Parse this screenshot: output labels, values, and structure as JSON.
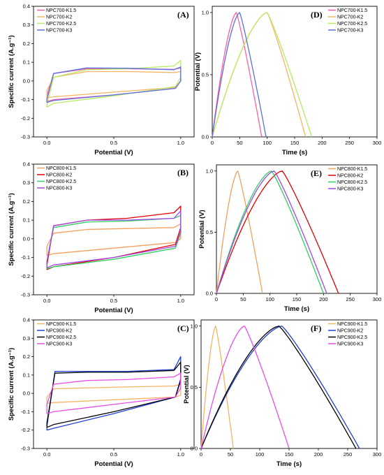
{
  "chart_data": [
    {
      "id": "A",
      "type": "line",
      "panel_label": "(A)",
      "xlabel": "Potential (V)",
      "ylabel": "Specific current (A.g⁻¹)",
      "xlim": [
        -0.1,
        1.1
      ],
      "ylim": [
        -0.3,
        0.4
      ],
      "xticks": [
        "0.0",
        "0.5",
        "1.0"
      ],
      "yticks": [
        "-0.3",
        "-0.2",
        "-0.1",
        "0.0",
        "0.1",
        "0.2",
        "0.3",
        "0.4"
      ],
      "legend_position": "top-left",
      "series": [
        {
          "name": "NPC700-K1.5",
          "color": "#ff5fa2",
          "upper": [
            [
              0.0,
              -0.08
            ],
            [
              0.05,
              0.04
            ],
            [
              0.3,
              0.065
            ],
            [
              0.6,
              0.065
            ],
            [
              0.95,
              0.062
            ],
            [
              1.0,
              0.07
            ]
          ],
          "lower": [
            [
              1.0,
              0.0
            ],
            [
              0.96,
              -0.04
            ],
            [
              0.5,
              -0.075
            ],
            [
              0.05,
              -0.1
            ],
            [
              0.0,
              -0.11
            ]
          ]
        },
        {
          "name": "NPC700-K2",
          "color": "#f5b463",
          "upper": [
            [
              0.0,
              -0.05
            ],
            [
              0.05,
              0.02
            ],
            [
              0.3,
              0.05
            ],
            [
              0.6,
              0.05
            ],
            [
              0.95,
              0.045
            ],
            [
              1.0,
              0.05
            ]
          ],
          "lower": [
            [
              1.0,
              0.0
            ],
            [
              0.96,
              -0.035
            ],
            [
              0.5,
              -0.06
            ],
            [
              0.05,
              -0.085
            ],
            [
              0.0,
              -0.09
            ]
          ]
        },
        {
          "name": "NPC700-K2.5",
          "color": "#b8ea62",
          "upper": [
            [
              0.0,
              -0.13
            ],
            [
              0.05,
              0.02
            ],
            [
              0.3,
              0.06
            ],
            [
              0.6,
              0.065
            ],
            [
              0.95,
              0.08
            ],
            [
              1.0,
              0.11
            ]
          ],
          "lower": [
            [
              1.0,
              0.02
            ],
            [
              0.96,
              -0.03
            ],
            [
              0.5,
              -0.08
            ],
            [
              0.05,
              -0.12
            ],
            [
              0.0,
              -0.14
            ]
          ]
        },
        {
          "name": "NPC700-K3",
          "color": "#5b6fe0",
          "upper": [
            [
              0.0,
              -0.1
            ],
            [
              0.05,
              0.04
            ],
            [
              0.3,
              0.07
            ],
            [
              0.6,
              0.068
            ],
            [
              0.95,
              0.06
            ],
            [
              1.0,
              0.075
            ]
          ],
          "lower": [
            [
              1.0,
              0.0
            ],
            [
              0.96,
              -0.04
            ],
            [
              0.5,
              -0.075
            ],
            [
              0.05,
              -0.105
            ],
            [
              0.0,
              -0.115
            ]
          ]
        }
      ]
    },
    {
      "id": "D",
      "type": "line",
      "panel_label": "(D)",
      "xlabel": "Time (s)",
      "ylabel": "Potential (V)",
      "xlim": [
        0,
        300
      ],
      "ylim": [
        0,
        1.05
      ],
      "xticks": [
        "0",
        "50",
        "100",
        "150",
        "200",
        "250",
        "300"
      ],
      "yticks": [
        "0.0",
        "0.5",
        "1.0"
      ],
      "legend_position": "top-right",
      "series": [
        {
          "name": "NPC700-K1.5",
          "color": "#ff5fa2",
          "charge_end": 44,
          "discharge_end": 90
        },
        {
          "name": "NPC700-K2",
          "color": "#f5b463",
          "charge_end": 100,
          "discharge_end": 170
        },
        {
          "name": "NPC700-K2.5",
          "color": "#b8ea62",
          "charge_end": 100,
          "discharge_end": 181
        },
        {
          "name": "NPC700-K3",
          "color": "#5b6fe0",
          "charge_end": 50,
          "discharge_end": 98
        }
      ]
    },
    {
      "id": "B",
      "type": "line",
      "panel_label": "(B)",
      "xlabel": "Potential (V)",
      "ylabel": "Specific current (A.g⁻¹)",
      "xlim": [
        -0.1,
        1.1
      ],
      "ylim": [
        -0.3,
        0.4
      ],
      "xticks": [
        "0.0",
        "0.5",
        "1.0"
      ],
      "yticks": [
        "-0.3",
        "-0.2",
        "-0.1",
        "0.0",
        "0.1",
        "0.2",
        "0.3",
        "0.4"
      ],
      "legend_position": "top-left",
      "series": [
        {
          "name": "NPC800-K1.5",
          "color": "#f5a05a",
          "upper": [
            [
              0.0,
              -0.04
            ],
            [
              0.05,
              0.03
            ],
            [
              0.3,
              0.05
            ],
            [
              0.6,
              0.055
            ],
            [
              0.95,
              0.06
            ],
            [
              1.0,
              0.08
            ]
          ],
          "lower": [
            [
              1.0,
              0.0
            ],
            [
              0.96,
              -0.02
            ],
            [
              0.5,
              -0.05
            ],
            [
              0.05,
              -0.08
            ],
            [
              0.0,
              -0.09
            ]
          ]
        },
        {
          "name": "NPC800-K2",
          "color": "#e00000",
          "upper": [
            [
              0.0,
              -0.14
            ],
            [
              0.05,
              0.07
            ],
            [
              0.3,
              0.1
            ],
            [
              0.6,
              0.11
            ],
            [
              0.95,
              0.14
            ],
            [
              1.0,
              0.175
            ]
          ],
          "lower": [
            [
              1.0,
              0.06
            ],
            [
              0.96,
              -0.03
            ],
            [
              0.5,
              -0.1
            ],
            [
              0.05,
              -0.15
            ],
            [
              0.0,
              -0.165
            ]
          ]
        },
        {
          "name": "NPC800-K2.5",
          "color": "#2ed160",
          "upper": [
            [
              0.0,
              -0.12
            ],
            [
              0.05,
              0.06
            ],
            [
              0.3,
              0.09
            ],
            [
              0.6,
              0.095
            ],
            [
              0.95,
              0.11
            ],
            [
              1.0,
              0.125
            ]
          ],
          "lower": [
            [
              1.0,
              0.03
            ],
            [
              0.96,
              -0.05
            ],
            [
              0.5,
              -0.11
            ],
            [
              0.05,
              -0.15
            ],
            [
              0.0,
              -0.16
            ]
          ]
        },
        {
          "name": "NPC800-K3",
          "color": "#a347e6",
          "upper": [
            [
              0.0,
              -0.12
            ],
            [
              0.05,
              0.07
            ],
            [
              0.3,
              0.1
            ],
            [
              0.6,
              0.1
            ],
            [
              0.95,
              0.11
            ],
            [
              1.0,
              0.15
            ]
          ],
          "lower": [
            [
              1.0,
              0.04
            ],
            [
              0.96,
              -0.04
            ],
            [
              0.5,
              -0.1
            ],
            [
              0.05,
              -0.14
            ],
            [
              0.0,
              -0.155
            ]
          ]
        }
      ]
    },
    {
      "id": "E",
      "type": "line",
      "panel_label": "(E)",
      "xlabel": "Time (s)",
      "ylabel": "Potential (V)",
      "xlim": [
        0,
        300
      ],
      "ylim": [
        0,
        1.05
      ],
      "xticks": [
        "0",
        "50",
        "100",
        "150",
        "200",
        "250",
        "300"
      ],
      "yticks": [
        "0.0",
        "0.5",
        "1.0"
      ],
      "legend_position": "top-right",
      "series": [
        {
          "name": "NPC800-K1.5",
          "color": "#f5a05a",
          "charge_end": 40,
          "discharge_end": 86
        },
        {
          "name": "NPC800-K2",
          "color": "#e00000",
          "charge_end": 123,
          "discharge_end": 228
        },
        {
          "name": "NPC800-K2.5",
          "color": "#2ed160",
          "charge_end": 103,
          "discharge_end": 200
        },
        {
          "name": "NPC800-K3",
          "color": "#a347e6",
          "charge_end": 108,
          "discharge_end": 206
        }
      ]
    },
    {
      "id": "C",
      "type": "line",
      "panel_label": "(C)",
      "xlabel": "Potential (V)",
      "ylabel": "Specific current (A.g⁻¹)",
      "xlim": [
        -0.1,
        1.1
      ],
      "ylim": [
        -0.3,
        0.4
      ],
      "xticks": [
        "0.0",
        "0.5",
        "1.0"
      ],
      "yticks": [
        "-0.3",
        "-0.2",
        "-0.1",
        "0.0",
        "0.1",
        "0.2",
        "0.3",
        "0.4"
      ],
      "legend_position": "top-left",
      "series": [
        {
          "name": "NPC900-K1.5",
          "color": "#f5b463",
          "upper": [
            [
              0.0,
              -0.02
            ],
            [
              0.05,
              0.025
            ],
            [
              0.3,
              0.03
            ],
            [
              0.6,
              0.035
            ],
            [
              0.95,
              0.04
            ],
            [
              1.0,
              0.05
            ]
          ],
          "lower": [
            [
              1.0,
              -0.01
            ],
            [
              0.96,
              -0.02
            ],
            [
              0.5,
              -0.035
            ],
            [
              0.05,
              -0.05
            ],
            [
              0.0,
              -0.055
            ]
          ]
        },
        {
          "name": "NPC900-K2",
          "color": "#1f3fd6",
          "upper": [
            [
              0.0,
              -0.18
            ],
            [
              0.06,
              0.12
            ],
            [
              0.3,
              0.12
            ],
            [
              0.6,
              0.12
            ],
            [
              0.95,
              0.13
            ],
            [
              1.0,
              0.2
            ]
          ],
          "lower": [
            [
              1.0,
              0.08
            ],
            [
              0.96,
              -0.02
            ],
            [
              0.5,
              -0.11
            ],
            [
              0.05,
              -0.19
            ],
            [
              0.0,
              -0.2
            ]
          ]
        },
        {
          "name": "NPC900-K2.5",
          "color": "#000000",
          "upper": [
            [
              0.0,
              -0.16
            ],
            [
              0.06,
              0.11
            ],
            [
              0.3,
              0.115
            ],
            [
              0.6,
              0.115
            ],
            [
              0.95,
              0.125
            ],
            [
              1.0,
              0.17
            ]
          ],
          "lower": [
            [
              1.0,
              0.07
            ],
            [
              0.96,
              -0.02
            ],
            [
              0.5,
              -0.1
            ],
            [
              0.05,
              -0.17
            ],
            [
              0.0,
              -0.185
            ]
          ]
        },
        {
          "name": "NPC900-K3",
          "color": "#e84de8",
          "upper": [
            [
              0.0,
              -0.06
            ],
            [
              0.05,
              0.05
            ],
            [
              0.3,
              0.07
            ],
            [
              0.6,
              0.075
            ],
            [
              0.95,
              0.09
            ],
            [
              1.0,
              0.11
            ]
          ],
          "lower": [
            [
              1.0,
              0.03
            ],
            [
              0.96,
              -0.02
            ],
            [
              0.5,
              -0.06
            ],
            [
              0.05,
              -0.1
            ],
            [
              0.0,
              -0.11
            ]
          ]
        }
      ]
    },
    {
      "id": "F",
      "type": "line",
      "panel_label": "(F)",
      "xlabel": "Time (s)",
      "ylabel": "Potential (V)",
      "xlim": [
        0,
        300
      ],
      "ylim": [
        0,
        1.05
      ],
      "xticks": [
        "0",
        "50",
        "100",
        "150",
        "200",
        "250",
        "300"
      ],
      "yticks": [
        "0.0",
        "0.5",
        "1.0"
      ],
      "legend_position": "top-right",
      "series": [
        {
          "name": "NPC900-K1.5",
          "color": "#f5b463",
          "charge_end": 25,
          "discharge_end": 55
        },
        {
          "name": "NPC900-K2",
          "color": "#1f3fd6",
          "charge_end": 138,
          "discharge_end": 270
        },
        {
          "name": "NPC900-K2.5",
          "color": "#000000",
          "charge_end": 133,
          "discharge_end": 264
        },
        {
          "name": "NPC900-K3",
          "color": "#e84de8",
          "charge_end": 74,
          "discharge_end": 150
        }
      ]
    }
  ]
}
